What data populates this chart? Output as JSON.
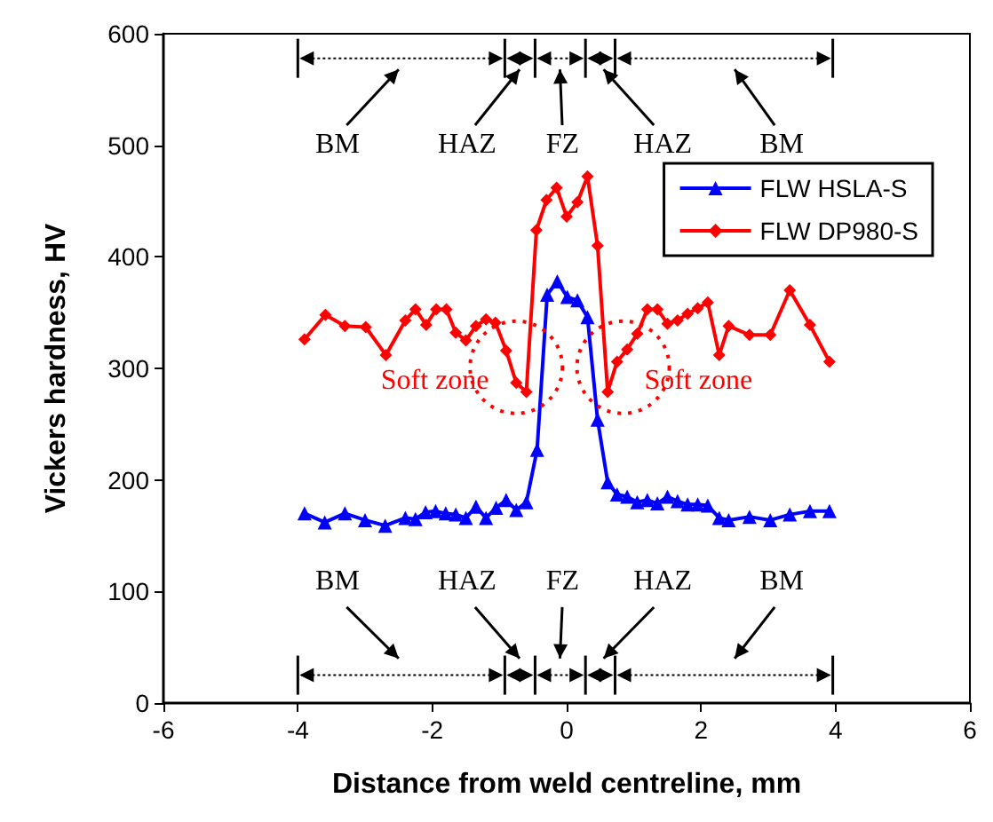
{
  "chart_data": {
    "type": "line",
    "xlabel": "Distance from weld centreline, mm",
    "ylabel": "Vickers hardness, HV",
    "xlim": [
      -6,
      6
    ],
    "xticks": [
      -6,
      -4,
      -2,
      0,
      2,
      4,
      6
    ],
    "ylim": [
      0,
      600
    ],
    "yticks": [
      0,
      100,
      200,
      300,
      400,
      500,
      600
    ],
    "grid": false,
    "legend": "top right",
    "series": [
      {
        "name": "FLW HSLA-S",
        "color": "#0000ff",
        "marker": "triangle",
        "x": [
          -3.9,
          -3.6,
          -3.3,
          -3.0,
          -2.7,
          -2.4,
          -2.25,
          -2.1,
          -1.95,
          -1.8,
          -1.65,
          -1.5,
          -1.35,
          -1.2,
          -1.05,
          -0.9,
          -0.75,
          -0.6,
          -0.44,
          -0.29,
          -0.14,
          0.01,
          0.16,
          0.31,
          0.46,
          0.61,
          0.75,
          0.9,
          1.05,
          1.2,
          1.35,
          1.5,
          1.65,
          1.8,
          1.95,
          2.1,
          2.27,
          2.41,
          2.72,
          3.03,
          3.32,
          3.62,
          3.91
        ],
        "values": [
          170,
          162,
          170,
          164,
          159,
          166,
          165,
          171,
          172,
          170,
          169,
          166,
          176,
          166,
          175,
          182,
          173,
          180,
          227,
          366,
          378,
          364,
          361,
          346,
          254,
          198,
          187,
          185,
          180,
          182,
          179,
          185,
          181,
          178,
          178,
          177,
          166,
          164,
          167,
          164,
          169,
          172,
          172
        ]
      },
      {
        "name": "FLW DP980-S",
        "color": "#ff0000",
        "marker": "diamond",
        "x": [
          -3.9,
          -3.59,
          -3.3,
          -2.99,
          -2.69,
          -2.4,
          -2.25,
          -2.09,
          -1.94,
          -1.79,
          -1.65,
          -1.5,
          -1.35,
          -1.2,
          -1.06,
          -0.9,
          -0.75,
          -0.6,
          -0.45,
          -0.3,
          -0.15,
          0.0,
          0.16,
          0.31,
          0.46,
          0.61,
          0.75,
          0.9,
          1.05,
          1.2,
          1.35,
          1.5,
          1.65,
          1.8,
          1.95,
          2.1,
          2.27,
          2.41,
          2.72,
          3.03,
          3.32,
          3.62,
          3.91
        ],
        "values": [
          326,
          348,
          338,
          337,
          312,
          343,
          353,
          339,
          353,
          353,
          332,
          325,
          338,
          344,
          341,
          316,
          287,
          279,
          424,
          451,
          462,
          436,
          449,
          472,
          410,
          279,
          306,
          317,
          331,
          353,
          353,
          340,
          343,
          349,
          354,
          359,
          312,
          338,
          330,
          330,
          370,
          339,
          306
        ]
      }
    ],
    "annotations": [
      "BM",
      "HAZ",
      "FZ",
      "HAZ",
      "BM",
      "BM",
      "HAZ",
      "FZ",
      "HAZ",
      "BM",
      "Soft zone",
      "Soft zone"
    ]
  }
}
